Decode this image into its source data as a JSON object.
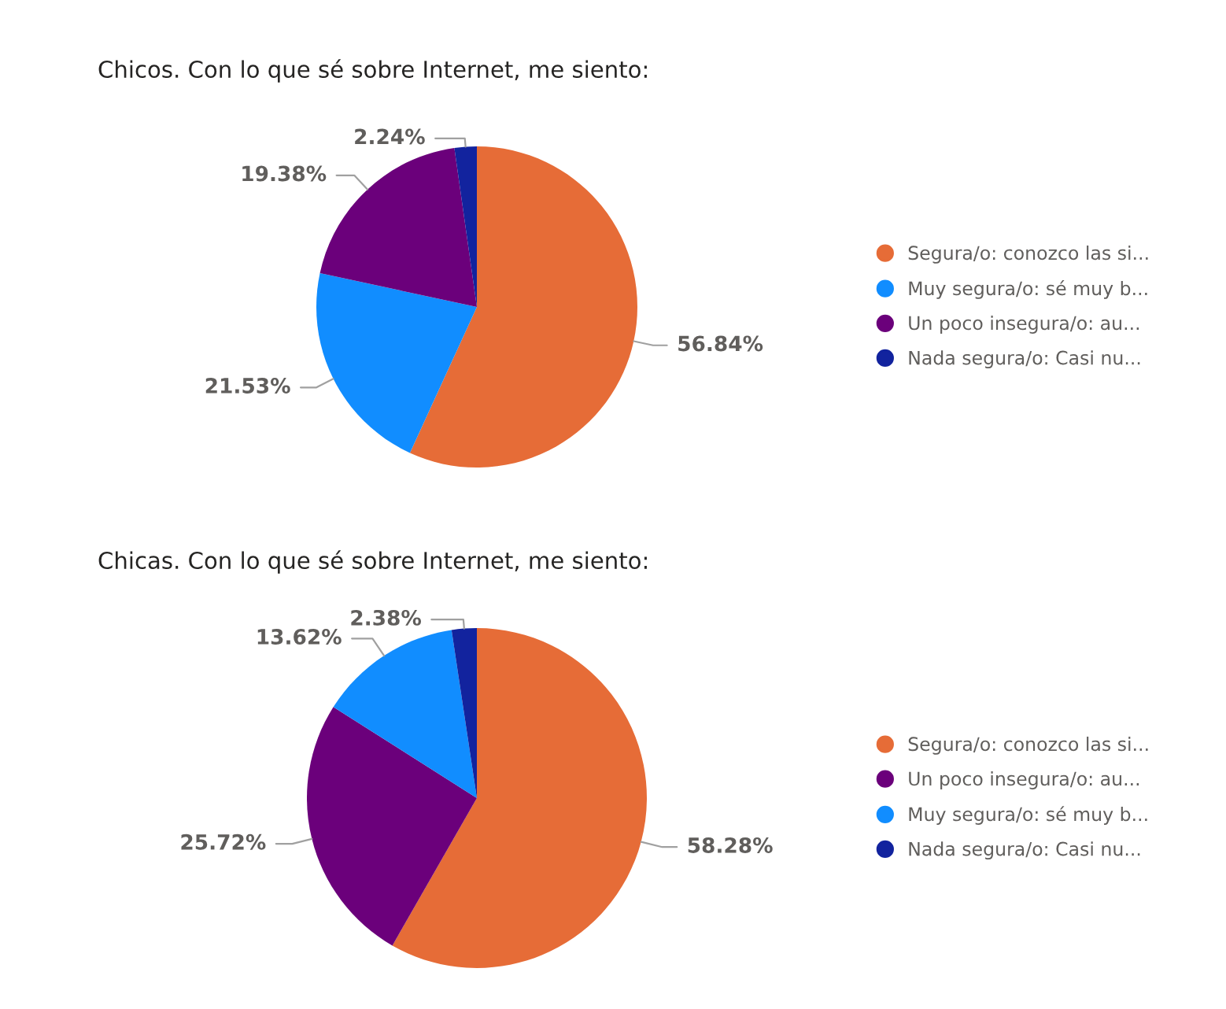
{
  "chart_data": [
    {
      "type": "pie",
      "title": "Chicos. Con lo que sé sobre Internet, me siento:",
      "categories": [
        "Segura/o: conozco las si...",
        "Muy segura/o: sé muy b...",
        "Un poco insegura/o: au...",
        "Nada segura/o: Casi nu..."
      ],
      "values": [
        56.84,
        21.53,
        19.38,
        2.24
      ],
      "colors": [
        "#e66c37",
        "#118dff",
        "#6b007b",
        "#12239e"
      ],
      "value_labels": [
        "56.84%",
        "21.53%",
        "19.38%",
        "2.24%"
      ],
      "legend": "right"
    },
    {
      "type": "pie",
      "title": "Chicas. Con lo que sé sobre Internet, me siento:",
      "categories": [
        "Segura/o: conozco las si...",
        "Un poco insegura/o: au...",
        "Muy segura/o: sé muy b...",
        "Nada segura/o: Casi nu..."
      ],
      "values": [
        58.28,
        25.72,
        13.62,
        2.38
      ],
      "colors": [
        "#e66c37",
        "#6b007b",
        "#118dff",
        "#12239e"
      ],
      "value_labels": [
        "58.28%",
        "25.72%",
        "13.62%",
        "2.38%"
      ],
      "legend": "right"
    }
  ]
}
